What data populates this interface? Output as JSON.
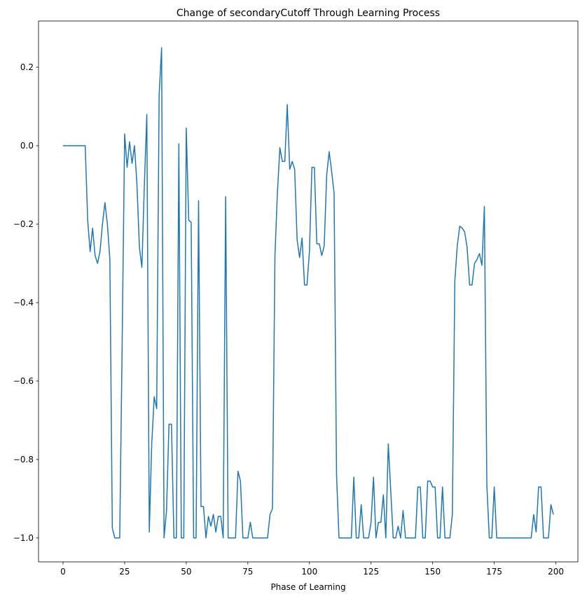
{
  "chart_data": {
    "type": "line",
    "title": "Change of secondaryCutoff Through Learning Process",
    "x_label": "Phase of Learning",
    "color": "#1f77b4",
    "x": [
      0,
      1,
      2,
      3,
      4,
      5,
      6,
      7,
      8,
      9,
      10,
      11,
      12,
      13,
      14,
      15,
      16,
      17,
      18,
      19,
      20,
      21,
      22,
      23,
      24,
      25,
      26,
      27,
      28,
      29,
      30,
      31,
      32,
      33,
      34,
      35,
      36,
      37,
      38,
      39,
      40,
      41,
      42,
      43,
      44,
      45,
      46,
      47,
      48,
      49,
      50,
      51,
      52,
      53,
      54,
      55,
      56,
      57,
      58,
      59,
      60,
      61,
      62,
      63,
      64,
      65,
      66,
      67,
      68,
      69,
      70,
      71,
      72,
      73,
      74,
      75,
      76,
      77,
      78,
      79,
      80,
      81,
      82,
      83,
      84,
      85,
      86,
      87,
      88,
      89,
      90,
      91,
      92,
      93,
      94,
      95,
      96,
      97,
      98,
      99,
      100,
      101,
      102,
      103,
      104,
      105,
      106,
      107,
      108,
      109,
      110,
      111,
      112,
      113,
      114,
      115,
      116,
      117,
      118,
      119,
      120,
      121,
      122,
      123,
      124,
      125,
      126,
      127,
      128,
      129,
      130,
      131,
      132,
      133,
      134,
      135,
      136,
      137,
      138,
      139,
      140,
      141,
      142,
      143,
      144,
      145,
      146,
      147,
      148,
      149,
      150,
      151,
      152,
      153,
      154,
      155,
      156,
      157,
      158,
      159,
      160,
      161,
      162,
      163,
      164,
      165,
      166,
      167,
      168,
      169,
      170,
      171,
      172,
      173,
      174,
      175,
      176,
      177,
      178,
      179,
      180,
      181,
      182,
      183,
      184,
      185,
      186,
      187,
      188,
      189,
      190,
      191,
      192,
      193,
      194,
      195,
      196,
      197,
      198,
      199
    ],
    "values": [
      0,
      0,
      0,
      0,
      0,
      0,
      0,
      0,
      0,
      0,
      -0.19,
      -0.27,
      -0.21,
      -0.28,
      -0.3,
      -0.27,
      -0.2,
      -0.145,
      -0.2,
      -0.29,
      -0.975,
      -1,
      -1,
      -1,
      -0.5,
      0.03,
      -0.055,
      0.01,
      -0.045,
      0,
      -0.1,
      -0.26,
      -0.31,
      -0.1,
      0.08,
      -0.985,
      -0.76,
      -0.64,
      -0.67,
      0.13,
      0.25,
      -1,
      -0.93,
      -0.71,
      -0.71,
      -1,
      -1,
      0.005,
      -1,
      -1,
      0.045,
      -0.19,
      -0.195,
      -1,
      -1,
      -0.14,
      -0.92,
      -0.92,
      -1,
      -0.945,
      -0.97,
      -0.94,
      -0.985,
      -0.945,
      -0.945,
      -1,
      -0.13,
      -1,
      -1,
      -1,
      -1,
      -0.83,
      -0.855,
      -1,
      -1,
      -1,
      -0.96,
      -1,
      -1,
      -1,
      -1,
      -1,
      -1,
      -1,
      -0.94,
      -0.925,
      -0.28,
      -0.12,
      -0.005,
      -0.04,
      -0.04,
      0.105,
      -0.06,
      -0.04,
      -0.06,
      -0.24,
      -0.285,
      -0.235,
      -0.355,
      -0.355,
      -0.27,
      -0.055,
      -0.055,
      -0.25,
      -0.25,
      -0.28,
      -0.255,
      -0.075,
      -0.015,
      -0.065,
      -0.12,
      -0.84,
      -1,
      -1,
      -1,
      -1,
      -1,
      -1,
      -0.845,
      -1,
      -1,
      -0.915,
      -1,
      -1,
      -1,
      -0.96,
      -0.845,
      -1,
      -0.96,
      -0.96,
      -0.89,
      -1,
      -0.76,
      -0.88,
      -1,
      -1,
      -0.97,
      -1,
      -0.93,
      -1,
      -1,
      -1,
      -1,
      -1,
      -0.87,
      -0.87,
      -1,
      -1,
      -0.855,
      -0.855,
      -0.87,
      -0.87,
      -1,
      -1,
      -0.87,
      -1,
      -1,
      -1,
      -0.94,
      -0.345,
      -0.255,
      -0.205,
      -0.21,
      -0.22,
      -0.26,
      -0.355,
      -0.355,
      -0.3,
      -0.29,
      -0.275,
      -0.305,
      -0.155,
      -0.865,
      -1,
      -1,
      -0.87,
      -1,
      -1,
      -1,
      -1,
      -1,
      -1,
      -1,
      -1,
      -1,
      -1,
      -1,
      -1,
      -1,
      -1,
      -1,
      -0.94,
      -0.985,
      -0.87,
      -0.87,
      -1,
      -1,
      -1,
      -0.915,
      -0.94
    ],
    "xlim": [
      -9.95,
      208.95
    ],
    "ylim": [
      -1.061,
      0.318
    ],
    "xticks": [
      0,
      25,
      50,
      75,
      100,
      125,
      150,
      175,
      200
    ],
    "yticks": [
      {
        "value": -1.0,
        "label": "−1.0"
      },
      {
        "value": -0.8,
        "label": "−0.8"
      },
      {
        "value": -0.6,
        "label": "−0.6"
      },
      {
        "value": -0.4,
        "label": "−0.4"
      },
      {
        "value": -0.2,
        "label": "−0.2"
      },
      {
        "value": 0.0,
        "label": "0.0"
      },
      0.2
    ],
    "grid": false
  }
}
